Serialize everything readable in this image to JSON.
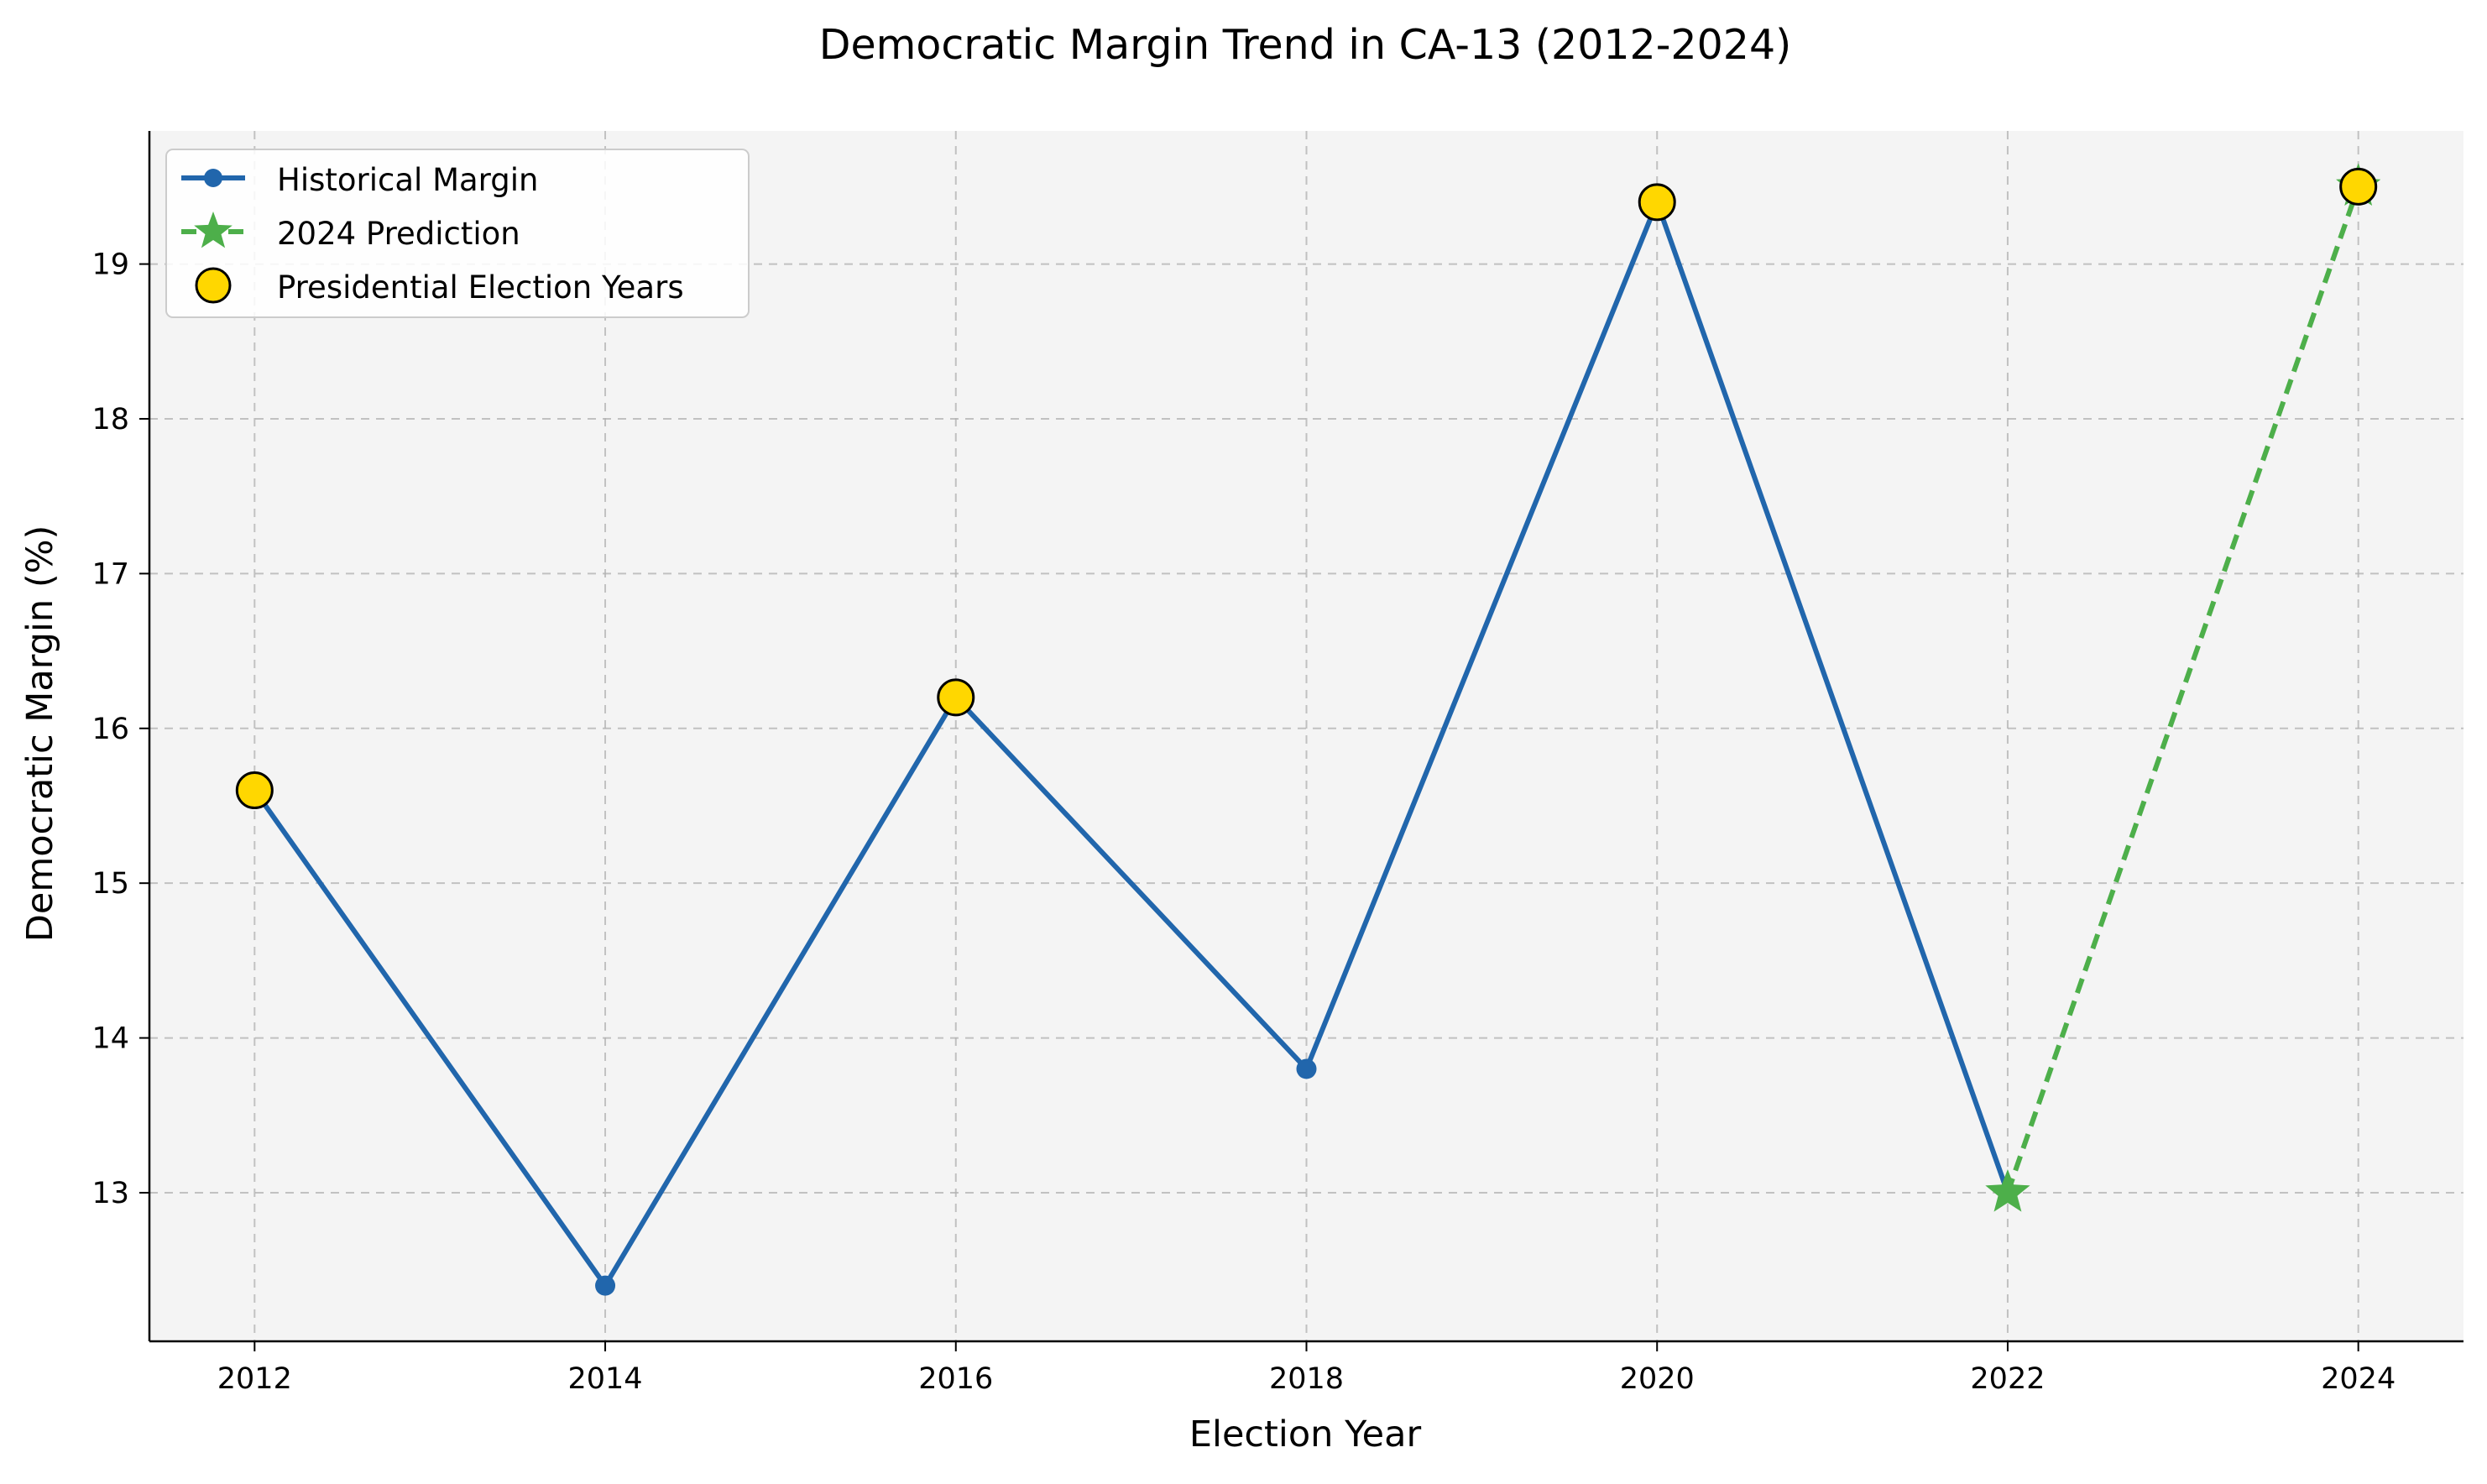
{
  "chart_data": {
    "type": "line",
    "title": "Democratic Margin Trend in CA-13 (2012-2024)",
    "xlabel": "Election Year",
    "ylabel": "Democratic Margin (%)",
    "xlim": [
      2011.4,
      2024.6
    ],
    "ylim": [
      12.04,
      19.86
    ],
    "xticks": [
      2012,
      2014,
      2016,
      2018,
      2020,
      2022,
      2024
    ],
    "yticks": [
      13,
      14,
      15,
      16,
      17,
      18,
      19
    ],
    "grid": true,
    "legend_position": "upper left",
    "series": [
      {
        "name": "Historical Margin",
        "style": "solid line with circle markers",
        "color": "#2166ac",
        "x": [
          2012,
          2014,
          2016,
          2018,
          2020,
          2022
        ],
        "y": [
          15.6,
          12.4,
          16.2,
          13.8,
          19.4,
          13.0
        ]
      },
      {
        "name": "2024 Prediction",
        "style": "dashed line with star markers",
        "color": "#4daf4a",
        "x": [
          2022,
          2024
        ],
        "y": [
          13.0,
          19.5
        ]
      },
      {
        "name": "Presidential Election Years",
        "style": "large circle markers",
        "color": "#ffd700",
        "x": [
          2012,
          2016,
          2020,
          2024
        ],
        "y": [
          15.6,
          16.2,
          19.4,
          19.5
        ]
      }
    ]
  },
  "colors": {
    "plot_background": "#f4f4f4",
    "grid": "#b0b0b0",
    "historical": "#2166ac",
    "prediction": "#4daf4a",
    "presidential_fill": "#ffd700",
    "presidential_edge": "#000000"
  }
}
